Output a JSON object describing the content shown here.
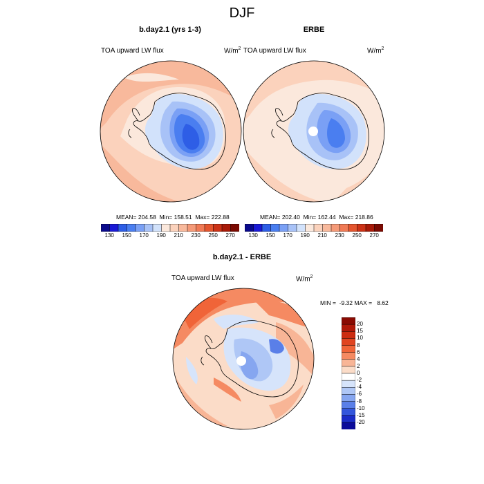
{
  "title": "DJF",
  "panels": [
    {
      "title": "b.day2.1 (yrs 1-3)",
      "variable": "TOA upward LW flux",
      "units_base": "W/m",
      "units_exp": "2",
      "stats": "MEAN= 204.58  Min= 158.51  Max= 222.88"
    },
    {
      "title": "ERBE",
      "variable": "TOA upward LW flux",
      "units_base": "W/m",
      "units_exp": "2",
      "stats": "MEAN= 202.40  Min= 162.44  Max= 218.86"
    },
    {
      "title": "b.day2.1 - ERBE",
      "variable": "TOA upward LW flux",
      "units_base": "W/m",
      "units_exp": "2",
      "stats": "MIN =  -9.32 MAX =   8.62"
    }
  ],
  "colorbar_abs": {
    "labels": [
      "130",
      "150",
      "170",
      "190",
      "210",
      "230",
      "250",
      "270"
    ],
    "colors": [
      "#0a0a8c",
      "#1a1ad6",
      "#2e5ee6",
      "#4a7ef0",
      "#7aa0f5",
      "#a8c2f7",
      "#d2e2fb",
      "#fbe8dc",
      "#fbd2bc",
      "#f8b99c",
      "#f59a78",
      "#f07a55",
      "#e4552e",
      "#cc3216",
      "#a81a08",
      "#7a0a02"
    ]
  },
  "colorbar_diff": {
    "labels": [
      "20",
      "15",
      "10",
      "8",
      "6",
      "4",
      "2",
      "0",
      "-2",
      "-4",
      "-6",
      "-8",
      "-10",
      "-15",
      "-20"
    ],
    "colors": [
      "#8a0a02",
      "#b01808",
      "#cc2c10",
      "#e04420",
      "#f06438",
      "#f58a62",
      "#f8b596",
      "#fbdcc8",
      "#ffffff",
      "#d6e4fb",
      "#afc7f6",
      "#86a6f0",
      "#5a7fe8",
      "#3356dc",
      "#1a2cc8",
      "#0a0a9a"
    ]
  }
}
